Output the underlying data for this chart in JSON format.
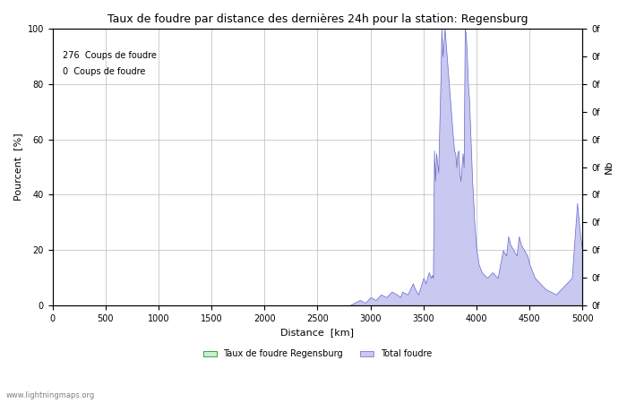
{
  "title": "Taux de foudre par distance des dernières 24h pour la station: Regensburg",
  "xlabel": "Distance  [km]",
  "ylabel_left": "Pourcent  [%]",
  "ylabel_right": "Nb",
  "legend_label1": "Taux de foudre Regensburg",
  "legend_label2": "Total foudre",
  "text_line1": "276  Coups de foudre",
  "text_line2": "0  Coups de foudre",
  "watermark": "www.lightningmaps.org",
  "xlim": [
    0,
    5000
  ],
  "ylim": [
    0,
    100
  ],
  "xticks": [
    0,
    500,
    1000,
    1500,
    2000,
    2500,
    3000,
    3500,
    4000,
    4500,
    5000
  ],
  "yticks_left": [
    0,
    20,
    40,
    60,
    80,
    100
  ],
  "right_axis_labels": [
    "0f",
    "0f",
    "0f",
    "0f",
    "0f",
    "0f",
    "0f",
    "0f",
    "0f",
    "0f",
    "0f"
  ],
  "right_axis_positions": [
    0,
    10,
    20,
    30,
    40,
    50,
    60,
    70,
    80,
    90,
    100
  ],
  "fill_color_green": "#c8f0c8",
  "fill_color_blue": "#c8c8f0",
  "line_color": "#6666cc",
  "bg_color": "#ffffff",
  "grid_color": "#bbbbbb"
}
